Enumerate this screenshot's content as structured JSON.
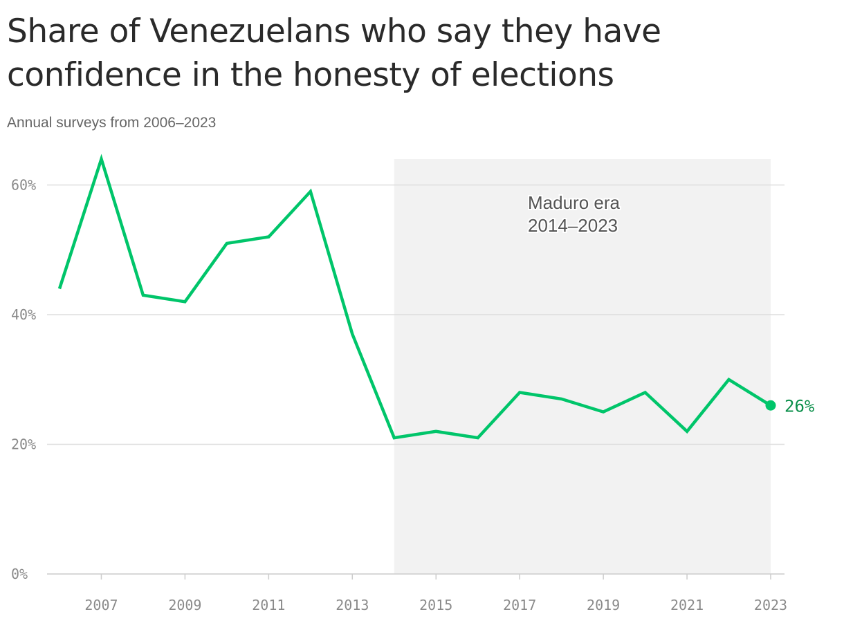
{
  "title": "Share of Venezuelans who say they have confidence in the honesty of elections",
  "subtitle": "Annual surveys from 2006–2023",
  "chart_data": {
    "type": "line",
    "title": "Share of Venezuelans who say they have confidence in the honesty of elections",
    "subtitle": "Annual surveys from 2006–2023",
    "xlabel": "",
    "ylabel": "",
    "x": [
      2006,
      2007,
      2008,
      2009,
      2010,
      2011,
      2012,
      2013,
      2014,
      2015,
      2016,
      2017,
      2018,
      2019,
      2020,
      2021,
      2022,
      2023
    ],
    "series": [
      {
        "values": [
          44,
          64,
          43,
          42,
          51,
          52,
          59,
          37,
          21,
          22,
          21,
          28,
          27,
          25,
          28,
          22,
          30,
          26
        ],
        "color": "#00c56a"
      }
    ],
    "xlim": [
      2006,
      2023
    ],
    "ylim": [
      0,
      64
    ],
    "y_ticks": [
      0,
      20,
      40,
      60
    ],
    "y_tick_labels": [
      "0%",
      "20%",
      "40%",
      "60%"
    ],
    "x_ticks": [
      2007,
      2009,
      2011,
      2013,
      2015,
      2017,
      2019,
      2021,
      2023
    ],
    "x_tick_labels": [
      "2007",
      "2009",
      "2011",
      "2013",
      "2015",
      "2017",
      "2019",
      "2021",
      "2023"
    ],
    "grid": true,
    "shaded_region": {
      "x_start": 2014,
      "x_end": 2023,
      "label_line1": "Maduro era",
      "label_line2": "2014–2023",
      "color": "#f2f2f2"
    },
    "end_label": "26%",
    "end_label_color": "#0a8f4a",
    "gridline_color": "#dddddd"
  }
}
